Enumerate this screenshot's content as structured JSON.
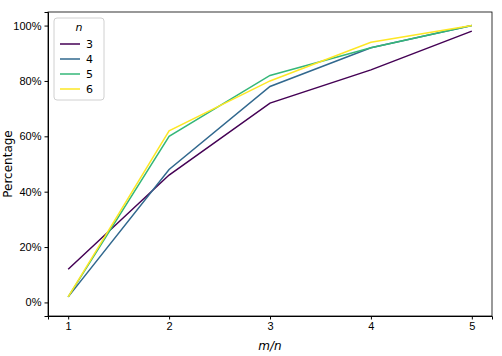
{
  "chart_data": {
    "type": "line",
    "x_label": "m/n",
    "y_label": "Percentage",
    "legend_title": "n",
    "legend": "upper left",
    "x": [
      1,
      2,
      3,
      4,
      5
    ],
    "xlim": [
      0.8,
      5.2
    ],
    "xticks": [
      1,
      2,
      3,
      4,
      5
    ],
    "ylim": [
      -4.9,
      104.9
    ],
    "yticks": [
      {
        "value": 0,
        "label": "0%"
      },
      {
        "value": 20,
        "label": "20%"
      },
      {
        "value": 40,
        "label": "40%"
      },
      {
        "value": 60,
        "label": "60%"
      },
      {
        "value": 80,
        "label": "80%"
      },
      {
        "value": 100,
        "label": "100%"
      }
    ],
    "grid": false,
    "series": [
      {
        "name": "3",
        "color": "#440154",
        "values": [
          12,
          46,
          72,
          84,
          98
        ]
      },
      {
        "name": "4",
        "color": "#31688e",
        "values": [
          2,
          48,
          78,
          92,
          100
        ]
      },
      {
        "name": "5",
        "color": "#35b779",
        "values": [
          2,
          60,
          82,
          92,
          100
        ]
      },
      {
        "name": "6",
        "color": "#fde725",
        "values": [
          2,
          62,
          80,
          94,
          100
        ]
      }
    ]
  }
}
